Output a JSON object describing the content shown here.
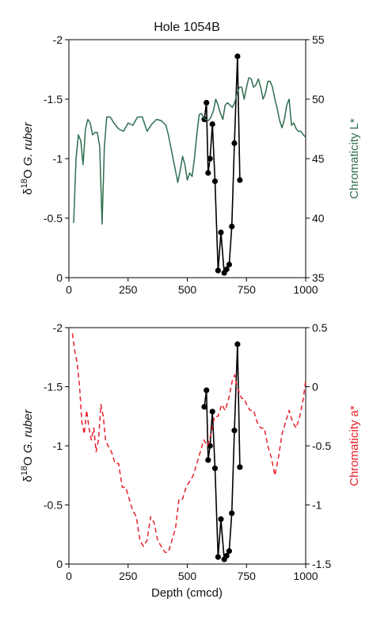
{
  "chart_data": [
    {
      "type": "line",
      "title": "Hole 1054B",
      "xlabel": "",
      "ylabel_left": {
        "delta": "δ",
        "sup": "18",
        "rest": "O ",
        "italic": "G. ruber"
      },
      "ylabel_right": "Chromaticity L*",
      "xlim": [
        0,
        1000
      ],
      "ylim_left": [
        0,
        -2
      ],
      "ylim_right": [
        35,
        55
      ],
      "x_ticks": [
        0,
        250,
        500,
        750,
        1000
      ],
      "left_ticks": [
        -2,
        -1.5,
        -1,
        -0.5,
        0
      ],
      "right_ticks": [
        35,
        40,
        45,
        50,
        55
      ],
      "series": [
        {
          "axis": "left",
          "color": "#000000",
          "markers": true,
          "x": [
            572,
            581,
            588,
            596,
            606,
            617,
            630,
            642,
            656,
            666,
            677,
            688,
            699,
            712,
            722
          ],
          "y": [
            -1.33,
            -1.47,
            -0.88,
            -1.0,
            -1.29,
            -0.81,
            -0.06,
            -0.38,
            -0.04,
            -0.07,
            -0.11,
            -0.43,
            -1.13,
            -1.86,
            -0.82
          ]
        },
        {
          "axis": "right",
          "color": "#2e6e4f",
          "markers": false,
          "x": [
            20,
            30,
            40,
            50,
            60,
            70,
            80,
            90,
            100,
            110,
            120,
            130,
            140,
            150,
            160,
            175,
            190,
            210,
            230,
            250,
            270,
            290,
            310,
            330,
            350,
            370,
            390,
            410,
            420,
            440,
            460,
            470,
            480,
            490,
            500,
            510,
            520,
            530,
            540,
            550,
            560,
            570,
            580,
            590,
            600,
            610,
            620,
            630,
            640,
            650,
            660,
            670,
            680,
            690,
            700,
            710,
            720,
            730,
            740,
            750,
            760,
            770,
            780,
            790,
            800,
            810,
            820,
            830,
            840,
            850,
            860,
            870,
            880,
            890,
            900,
            910,
            920,
            930,
            940,
            950,
            960,
            970,
            980,
            990,
            1000
          ],
          "y": [
            39.6,
            45,
            47,
            46.5,
            44.5,
            47.5,
            48.3,
            48,
            47,
            47.2,
            47.2,
            46,
            39.5,
            46,
            48.5,
            48.5,
            48,
            47.5,
            47.3,
            48,
            47.8,
            48.5,
            48.5,
            47.3,
            47.9,
            48.3,
            48.2,
            47.8,
            47,
            45,
            43,
            44,
            45.2,
            44.5,
            43.2,
            43.8,
            43.5,
            45,
            47,
            48.7,
            48.8,
            48.4,
            48.3,
            48.2,
            48.5,
            49,
            50,
            49.5,
            48.8,
            48.3,
            49.5,
            49.7,
            49.5,
            49.3,
            49.7,
            50.5,
            51,
            51,
            50,
            51,
            51.8,
            51.7,
            51,
            51.2,
            51.7,
            51,
            50,
            50.5,
            51.5,
            51.5,
            51,
            50,
            49.2,
            48.2,
            47.6,
            48.3,
            49.5,
            50,
            47.8,
            48,
            47.5,
            47.3,
            47.3,
            47,
            46.8
          ]
        }
      ]
    },
    {
      "type": "line",
      "title": "",
      "xlabel": "Depth (cmcd)",
      "ylabel_left": {
        "delta": "δ",
        "sup": "18",
        "rest": "O ",
        "italic": "G. ruber"
      },
      "ylabel_right": "Chromaticity a*",
      "xlim": [
        0,
        1000
      ],
      "ylim_left": [
        0,
        -2
      ],
      "ylim_right": [
        -1.5,
        0.5
      ],
      "x_ticks": [
        0,
        250,
        500,
        750,
        1000
      ],
      "left_ticks": [
        -2,
        -1.5,
        -1,
        -0.5,
        0
      ],
      "right_ticks": [
        -1.5,
        -1,
        -0.5,
        0,
        0.5
      ],
      "series": [
        {
          "axis": "left",
          "color": "#000000",
          "markers": true,
          "x": [
            572,
            581,
            588,
            596,
            606,
            617,
            630,
            642,
            656,
            666,
            677,
            688,
            699,
            712,
            722
          ],
          "y": [
            -1.33,
            -1.47,
            -0.88,
            -1.0,
            -1.29,
            -0.81,
            -0.06,
            -0.38,
            -0.04,
            -0.07,
            -0.11,
            -0.43,
            -1.13,
            -1.86,
            -0.82
          ]
        },
        {
          "axis": "right",
          "color": "#e8202a",
          "dashed": true,
          "markers": false,
          "x": [
            15,
            25,
            35,
            45,
            55,
            65,
            75,
            85,
            95,
            105,
            115,
            125,
            135,
            145,
            155,
            165,
            180,
            195,
            210,
            225,
            240,
            255,
            270,
            285,
            300,
            315,
            330,
            345,
            360,
            375,
            390,
            405,
            420,
            435,
            450,
            465,
            480,
            495,
            510,
            525,
            540,
            555,
            570,
            585,
            600,
            615,
            630,
            645,
            660,
            675,
            690,
            700,
            710,
            720,
            730,
            740,
            750,
            765,
            780,
            795,
            810,
            825,
            840,
            855,
            870,
            885,
            900,
            915,
            930,
            945,
            960,
            975,
            990,
            1000
          ],
          "y": [
            0.45,
            0.3,
            0.2,
            0.0,
            -0.3,
            -0.4,
            -0.2,
            -0.35,
            -0.45,
            -0.35,
            -0.55,
            -0.45,
            -0.15,
            -0.25,
            -0.45,
            -0.5,
            -0.55,
            -0.65,
            -0.65,
            -0.85,
            -0.85,
            -0.95,
            -1.05,
            -1.1,
            -1.3,
            -1.35,
            -1.3,
            -1.1,
            -1.15,
            -1.3,
            -1.35,
            -1.4,
            -1.4,
            -1.3,
            -1.2,
            -0.95,
            -0.95,
            -0.85,
            -0.8,
            -0.75,
            -0.65,
            -0.55,
            -0.45,
            -0.5,
            -0.4,
            -0.25,
            -0.25,
            -0.15,
            -0.2,
            -0.1,
            0.05,
            0.1,
            0.0,
            -0.05,
            -0.1,
            -0.1,
            -0.15,
            -0.2,
            -0.2,
            -0.3,
            -0.35,
            -0.35,
            -0.5,
            -0.6,
            -0.75,
            -0.6,
            -0.4,
            -0.3,
            -0.2,
            -0.3,
            -0.35,
            -0.25,
            -0.1,
            0.05
          ]
        }
      ]
    }
  ]
}
